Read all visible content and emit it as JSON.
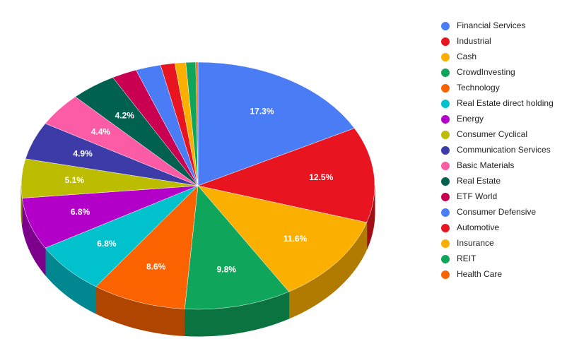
{
  "chart_data": {
    "type": "pie3d",
    "categories": [
      "Financial Services",
      "Industrial",
      "Cash",
      "CrowdInvesting",
      "Technology",
      "Real Estate direct holding",
      "Energy",
      "Consumer Cyclical",
      "Communication Services",
      "Basic Materials",
      "Real Estate",
      "ETF World",
      "Consumer Defensive",
      "Automotive",
      "Insurance",
      "REIT",
      "Health Care"
    ],
    "values": [
      17.3,
      12.5,
      11.6,
      9.8,
      8.6,
      6.8,
      6.8,
      5.1,
      4.9,
      4.4,
      4.2,
      2.3,
      2.3,
      1.3,
      1.0,
      0.9,
      0.2
    ],
    "value_labels": [
      "17.3%",
      "12.5%",
      "11.6%",
      "9.8%",
      "8.6%",
      "6.8%",
      "6.8%",
      "5.1%",
      "4.9%",
      "4.4%",
      "4.2%",
      null,
      null,
      null,
      null,
      null,
      null
    ],
    "colors": [
      "#4a7cf5",
      "#e8141f",
      "#fbb000",
      "#0fa55a",
      "#fb6200",
      "#00c1cc",
      "#b300c9",
      "#bcbc00",
      "#3d3ba8",
      "#fc5ca5",
      "#006150",
      "#c90052",
      "#4a7cf5",
      "#e8141f",
      "#fbb000",
      "#0fa55a",
      "#fb6200"
    ],
    "legend": "right"
  }
}
